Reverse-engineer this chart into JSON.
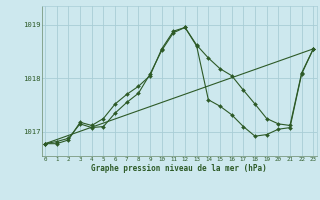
{
  "xlabel": "Graphe pression niveau de la mer (hPa)",
  "x_ticks": [
    0,
    1,
    2,
    3,
    4,
    5,
    6,
    7,
    8,
    9,
    10,
    11,
    12,
    13,
    14,
    15,
    16,
    17,
    18,
    19,
    20,
    21,
    22,
    23
  ],
  "y_ticks": [
    1017,
    1018,
    1019
  ],
  "ylim": [
    1016.55,
    1019.35
  ],
  "xlim": [
    -0.3,
    23.3
  ],
  "bg_color": "#cde8ee",
  "grid_color": "#a8cdd6",
  "line_color": "#2d5a27",
  "line1": [
    1016.78,
    1016.78,
    1016.85,
    1017.18,
    1017.12,
    1017.25,
    1017.52,
    1017.7,
    1017.85,
    1018.05,
    1018.55,
    1018.88,
    1018.95,
    1018.62,
    1018.38,
    1018.18,
    1018.05,
    1017.78,
    1017.52,
    1017.25,
    1017.15,
    1017.12,
    1018.1,
    1018.55
  ],
  "line2": [
    1016.78,
    1016.82,
    1016.88,
    1017.15,
    1017.08,
    1017.1,
    1017.35,
    1017.55,
    1017.72,
    1018.08,
    1018.52,
    1018.85,
    1018.95,
    1018.6,
    1017.6,
    1017.48,
    1017.32,
    1017.1,
    1016.92,
    1016.95,
    1017.05,
    1017.08,
    1018.08,
    1018.55
  ],
  "line3_x": [
    0,
    23
  ],
  "line3_y": [
    1016.78,
    1018.55
  ]
}
